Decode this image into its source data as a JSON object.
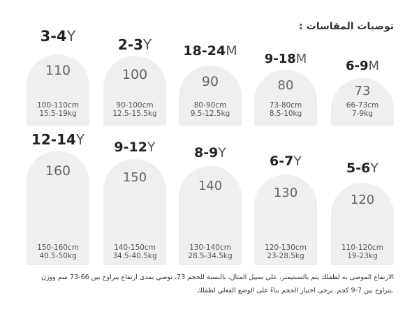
{
  "title": "توصيات المقاسات :",
  "row1": [
    {
      "age": "3-4",
      "unit": "Y",
      "size": "110",
      "height": "100-110cm",
      "weight": "15.5-19kg"
    },
    {
      "age": "2-3",
      "unit": "Y",
      "size": "100",
      "height": "90-100cm",
      "weight": "12.5-15.5kg"
    },
    {
      "age": "18-24",
      "unit": "M",
      "size": "90",
      "height": "80-90cm",
      "weight": "9.5-12.5kg"
    },
    {
      "age": "9-18",
      "unit": "M",
      "size": "80",
      "height": "73-80cm",
      "weight": "8.5-10kg"
    },
    {
      "age": "6-9",
      "unit": "M",
      "size": "73",
      "height": "66-73cm",
      "weight": "7-9kg"
    }
  ],
  "row2": [
    {
      "age": "12-14",
      "unit": "Y",
      "size": "160",
      "height": "150-160cm",
      "weight": "40.5-50kg"
    },
    {
      "age": "9-12",
      "unit": "Y",
      "size": "150",
      "height": "140-150cm",
      "weight": "34.5-40.5kg"
    },
    {
      "age": "8-9",
      "unit": "Y",
      "size": "140",
      "height": "130-140cm",
      "weight": "28.5-34.5kg"
    },
    {
      "age": "6-7",
      "unit": "Y",
      "size": "130",
      "height": "120-130cm",
      "weight": "23-28.5kg"
    },
    {
      "age": "5-6",
      "unit": "Y",
      "size": "120",
      "height": "110-120cm",
      "weight": "19-23kg"
    }
  ],
  "note": {
    "line1": "الارتفاع الموصى به لطفلك يتم بالسنتيمتر. على سبيل المثال، بالنسبة للحجم 73، نوصي بمدى ارتفاع يتراوح بين 66-73 سم ووزن",
    "line2": ".يتراوح بين 7-9 كجم. يرجى اختيار الحجم بناءً على الوضع الفعلي لطفلك"
  }
}
